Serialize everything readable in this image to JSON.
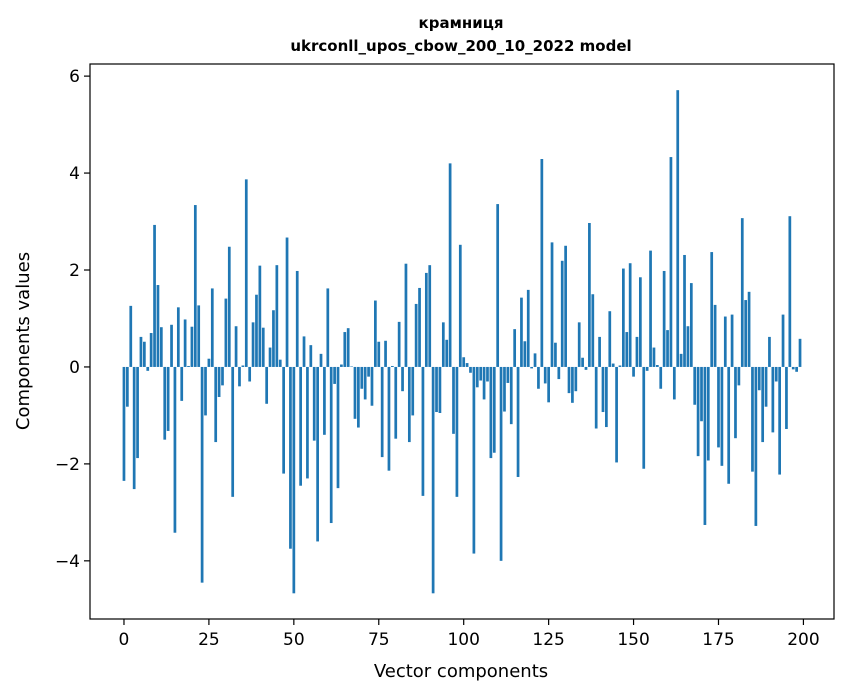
{
  "chart_data": {
    "type": "bar",
    "title_line1": "крамниця",
    "title_line2": "ukrconll_upos_cbow_200_10_2022 model",
    "xlabel": "Vector components",
    "ylabel": "Components values",
    "xlim": [
      -10,
      209
    ],
    "ylim": [
      -5.2,
      6.25
    ],
    "xticks": [
      0,
      25,
      50,
      75,
      100,
      125,
      150,
      175,
      200
    ],
    "xtick_labels": [
      "0",
      "25",
      "50",
      "75",
      "100",
      "125",
      "150",
      "175",
      "200"
    ],
    "yticks": [
      -4,
      -2,
      0,
      2,
      4,
      6
    ],
    "ytick_labels": [
      "−4",
      "−2",
      "0",
      "2",
      "4",
      "6"
    ],
    "bar_color": "#1f77b4",
    "values": [
      -2.35,
      -0.82,
      1.26,
      -2.52,
      -1.88,
      0.62,
      0.52,
      -0.08,
      0.7,
      2.93,
      1.69,
      0.82,
      -1.5,
      -1.32,
      0.87,
      -3.42,
      1.23,
      -0.7,
      0.98,
      0.02,
      0.83,
      3.34,
      1.27,
      -4.45,
      -1.0,
      0.17,
      1.62,
      -1.55,
      -0.62,
      -0.38,
      1.41,
      2.48,
      -2.68,
      0.84,
      -0.4,
      0.03,
      3.87,
      -0.3,
      0.92,
      1.49,
      2.09,
      0.81,
      -0.76,
      0.4,
      1.17,
      2.1,
      0.15,
      -2.2,
      2.67,
      -3.75,
      -4.67,
      1.98,
      -2.45,
      0.63,
      -2.3,
      0.45,
      -1.52,
      -3.6,
      0.27,
      -1.4,
      1.62,
      -3.22,
      -0.35,
      -2.5,
      0.05,
      0.72,
      0.8,
      0.01,
      -1.07,
      -1.25,
      -0.45,
      -0.67,
      -0.2,
      -0.8,
      1.37,
      0.52,
      -1.86,
      0.54,
      -2.14,
      0.02,
      -1.48,
      0.93,
      -0.5,
      2.13,
      -1.55,
      -1.0,
      1.3,
      1.63,
      -2.66,
      1.94,
      2.1,
      -4.67,
      -0.93,
      -0.95,
      0.92,
      0.56,
      4.2,
      -1.38,
      -2.68,
      2.52,
      0.2,
      0.08,
      -0.12,
      -3.85,
      -0.42,
      -0.28,
      -0.67,
      -0.3,
      -1.88,
      -1.77,
      3.36,
      -4.0,
      -0.92,
      -0.33,
      -1.18,
      0.78,
      -2.27,
      1.43,
      0.53,
      1.59,
      -0.03,
      0.28,
      -0.45,
      4.29,
      -0.34,
      -0.73,
      2.57,
      0.5,
      -0.25,
      2.19,
      2.5,
      -0.54,
      -0.74,
      -0.5,
      0.92,
      0.19,
      -0.06,
      2.97,
      1.5,
      -1.27,
      0.62,
      -0.93,
      -1.24,
      1.15,
      0.07,
      -1.97,
      0.03,
      2.03,
      0.72,
      2.14,
      -0.2,
      0.62,
      1.85,
      -2.1,
      -0.08,
      2.4,
      0.4,
      0.04,
      -0.45,
      1.98,
      0.76,
      4.33,
      -0.67,
      5.71,
      0.27,
      2.31,
      0.84,
      1.73,
      -0.78,
      -1.84,
      -1.12,
      -3.26,
      -1.93,
      2.37,
      1.28,
      -1.66,
      -2.04,
      1.04,
      -2.41,
      1.08,
      -1.47,
      -0.38,
      3.07,
      1.38,
      1.55,
      -2.16,
      -3.28,
      -0.48,
      -1.55,
      -0.82,
      0.62,
      -1.35,
      -0.3,
      -2.22,
      1.08,
      -1.28,
      3.11,
      -0.05,
      -0.1,
      0.58
    ]
  }
}
